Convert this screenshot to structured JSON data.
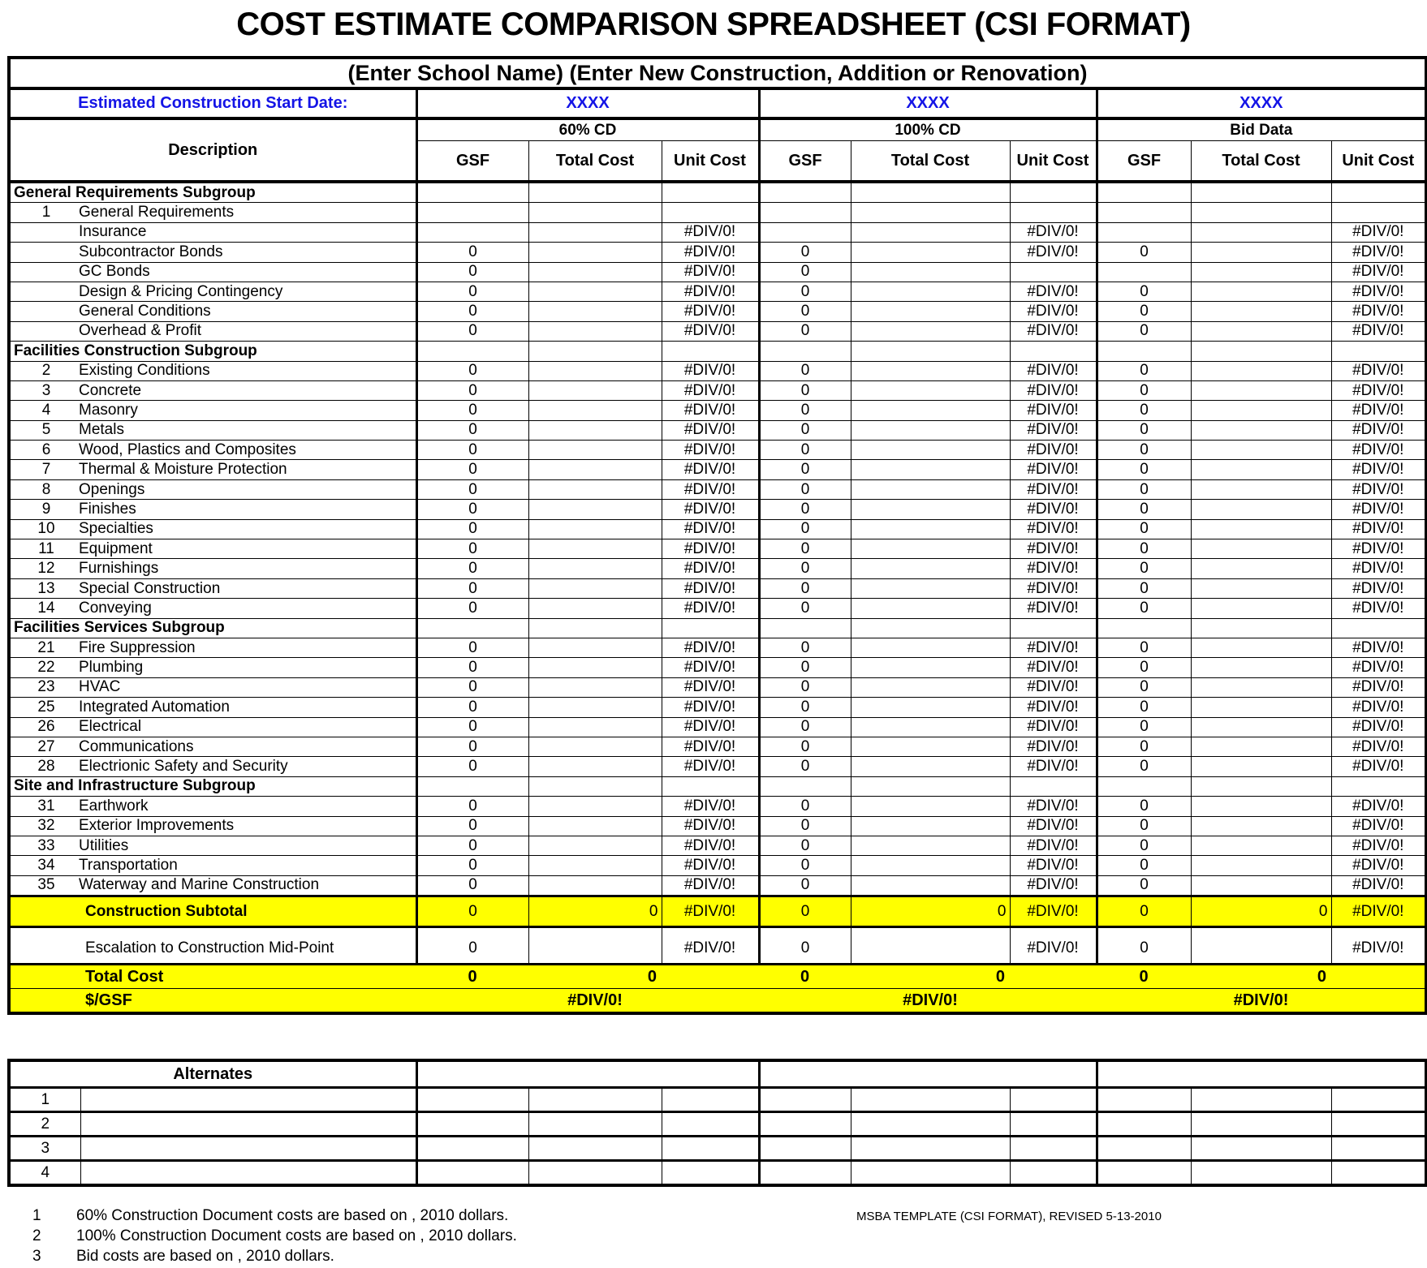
{
  "title": "COST ESTIMATE COMPARISON SPREADSHEET (CSI FORMAT)",
  "subtitle": "(Enter School Name) (Enter New Construction, Addition or Renovation)",
  "start_date_label": "Estimated Construction Start Date:",
  "start_dates": [
    "XXXX",
    "XXXX",
    "XXXX"
  ],
  "groups": [
    "60% CD",
    "100% CD",
    "Bid Data"
  ],
  "description_header": "Description",
  "column_headers": [
    "GSF",
    "Total Cost",
    "Unit Cost"
  ],
  "colors": {
    "highlight": "#ffff00",
    "blue_text": "#1414e6"
  },
  "rows": [
    {
      "type": "subgroup",
      "desc": "General Requirements Subgroup"
    },
    {
      "type": "item",
      "num": "1",
      "desc": "General Requirements",
      "cells": [
        "",
        "",
        "",
        "",
        "",
        "",
        "",
        "",
        ""
      ]
    },
    {
      "type": "item",
      "num": "",
      "desc": "Insurance",
      "cells": [
        "",
        "",
        "#DIV/0!",
        "",
        "",
        "#DIV/0!",
        "",
        "",
        "#DIV/0!"
      ]
    },
    {
      "type": "item",
      "num": "",
      "desc": "Subcontractor Bonds",
      "cells": [
        "0",
        "",
        "#DIV/0!",
        "0",
        "",
        "#DIV/0!",
        "0",
        "",
        "#DIV/0!"
      ]
    },
    {
      "type": "item",
      "num": "",
      "desc": "GC Bonds",
      "cells": [
        "0",
        "",
        "#DIV/0!",
        "0",
        "",
        "",
        "",
        "",
        "#DIV/0!"
      ]
    },
    {
      "type": "item",
      "num": "",
      "desc": "Design & Pricing Contingency",
      "cells": [
        "0",
        "",
        "#DIV/0!",
        "0",
        "",
        "#DIV/0!",
        "0",
        "",
        "#DIV/0!"
      ]
    },
    {
      "type": "item",
      "num": "",
      "desc": "General Conditions",
      "cells": [
        "0",
        "",
        "#DIV/0!",
        "0",
        "",
        "#DIV/0!",
        "0",
        "",
        "#DIV/0!"
      ]
    },
    {
      "type": "item",
      "num": "",
      "desc": "Overhead & Profit",
      "cells": [
        "0",
        "",
        "#DIV/0!",
        "0",
        "",
        "#DIV/0!",
        "0",
        "",
        "#DIV/0!"
      ]
    },
    {
      "type": "subgroup",
      "desc": "Facilities Construction Subgroup"
    },
    {
      "type": "item",
      "num": "2",
      "desc": "Existing Conditions",
      "cells": [
        "0",
        "",
        "#DIV/0!",
        "0",
        "",
        "#DIV/0!",
        "0",
        "",
        "#DIV/0!"
      ]
    },
    {
      "type": "item",
      "num": "3",
      "desc": "Concrete",
      "cells": [
        "0",
        "",
        "#DIV/0!",
        "0",
        "",
        "#DIV/0!",
        "0",
        "",
        "#DIV/0!"
      ]
    },
    {
      "type": "item",
      "num": "4",
      "desc": "Masonry",
      "cells": [
        "0",
        "",
        "#DIV/0!",
        "0",
        "",
        "#DIV/0!",
        "0",
        "",
        "#DIV/0!"
      ]
    },
    {
      "type": "item",
      "num": "5",
      "desc": "Metals",
      "cells": [
        "0",
        "",
        "#DIV/0!",
        "0",
        "",
        "#DIV/0!",
        "0",
        "",
        "#DIV/0!"
      ]
    },
    {
      "type": "item",
      "num": "6",
      "desc": "Wood, Plastics and Composites",
      "cells": [
        "0",
        "",
        "#DIV/0!",
        "0",
        "",
        "#DIV/0!",
        "0",
        "",
        "#DIV/0!"
      ]
    },
    {
      "type": "item",
      "num": "7",
      "desc": "Thermal & Moisture Protection",
      "cells": [
        "0",
        "",
        "#DIV/0!",
        "0",
        "",
        "#DIV/0!",
        "0",
        "",
        "#DIV/0!"
      ]
    },
    {
      "type": "item",
      "num": "8",
      "desc": "Openings",
      "cells": [
        "0",
        "",
        "#DIV/0!",
        "0",
        "",
        "#DIV/0!",
        "0",
        "",
        "#DIV/0!"
      ]
    },
    {
      "type": "item",
      "num": "9",
      "desc": "Finishes",
      "cells": [
        "0",
        "",
        "#DIV/0!",
        "0",
        "",
        "#DIV/0!",
        "0",
        "",
        "#DIV/0!"
      ]
    },
    {
      "type": "item",
      "num": "10",
      "desc": "Specialties",
      "cells": [
        "0",
        "",
        "#DIV/0!",
        "0",
        "",
        "#DIV/0!",
        "0",
        "",
        "#DIV/0!"
      ]
    },
    {
      "type": "item",
      "num": "11",
      "desc": "Equipment",
      "cells": [
        "0",
        "",
        "#DIV/0!",
        "0",
        "",
        "#DIV/0!",
        "0",
        "",
        "#DIV/0!"
      ]
    },
    {
      "type": "item",
      "num": "12",
      "desc": "Furnishings",
      "cells": [
        "0",
        "",
        "#DIV/0!",
        "0",
        "",
        "#DIV/0!",
        "0",
        "",
        "#DIV/0!"
      ]
    },
    {
      "type": "item",
      "num": "13",
      "desc": "Special Construction",
      "cells": [
        "0",
        "",
        "#DIV/0!",
        "0",
        "",
        "#DIV/0!",
        "0",
        "",
        "#DIV/0!"
      ]
    },
    {
      "type": "item",
      "num": "14",
      "desc": "Conveying",
      "cells": [
        "0",
        "",
        "#DIV/0!",
        "0",
        "",
        "#DIV/0!",
        "0",
        "",
        "#DIV/0!"
      ]
    },
    {
      "type": "subgroup",
      "desc": "Facilities Services Subgroup"
    },
    {
      "type": "item",
      "num": "21",
      "desc": "Fire Suppression",
      "cells": [
        "0",
        "",
        "#DIV/0!",
        "0",
        "",
        "#DIV/0!",
        "0",
        "",
        "#DIV/0!"
      ]
    },
    {
      "type": "item",
      "num": "22",
      "desc": "Plumbing",
      "cells": [
        "0",
        "",
        "#DIV/0!",
        "0",
        "",
        "#DIV/0!",
        "0",
        "",
        "#DIV/0!"
      ]
    },
    {
      "type": "item",
      "num": "23",
      "desc": "HVAC",
      "cells": [
        "0",
        "",
        "#DIV/0!",
        "0",
        "",
        "#DIV/0!",
        "0",
        "",
        "#DIV/0!"
      ]
    },
    {
      "type": "item",
      "num": "25",
      "desc": "Integrated Automation",
      "cells": [
        "0",
        "",
        "#DIV/0!",
        "0",
        "",
        "#DIV/0!",
        "0",
        "",
        "#DIV/0!"
      ]
    },
    {
      "type": "item",
      "num": "26",
      "desc": "Electrical",
      "cells": [
        "0",
        "",
        "#DIV/0!",
        "0",
        "",
        "#DIV/0!",
        "0",
        "",
        "#DIV/0!"
      ]
    },
    {
      "type": "item",
      "num": "27",
      "desc": "Communications",
      "cells": [
        "0",
        "",
        "#DIV/0!",
        "0",
        "",
        "#DIV/0!",
        "0",
        "",
        "#DIV/0!"
      ]
    },
    {
      "type": "item",
      "num": "28",
      "desc": "Electrionic Safety and Security",
      "cells": [
        "0",
        "",
        "#DIV/0!",
        "0",
        "",
        "#DIV/0!",
        "0",
        "",
        "#DIV/0!"
      ]
    },
    {
      "type": "subgroup",
      "desc": "Site and Infrastructure Subgroup"
    },
    {
      "type": "item",
      "num": "31",
      "desc": "Earthwork",
      "cells": [
        "0",
        "",
        "#DIV/0!",
        "0",
        "",
        "#DIV/0!",
        "0",
        "",
        "#DIV/0!"
      ]
    },
    {
      "type": "item",
      "num": "32",
      "desc": "Exterior Improvements",
      "cells": [
        "0",
        "",
        "#DIV/0!",
        "0",
        "",
        "#DIV/0!",
        "0",
        "",
        "#DIV/0!"
      ]
    },
    {
      "type": "item",
      "num": "33",
      "desc": "Utilities",
      "cells": [
        "0",
        "",
        "#DIV/0!",
        "0",
        "",
        "#DIV/0!",
        "0",
        "",
        "#DIV/0!"
      ]
    },
    {
      "type": "item",
      "num": "34",
      "desc": "Transportation",
      "cells": [
        "0",
        "",
        "#DIV/0!",
        "0",
        "",
        "#DIV/0!",
        "0",
        "",
        "#DIV/0!"
      ]
    },
    {
      "type": "item",
      "num": "35",
      "desc": "Waterway and Marine Construction",
      "cells": [
        "0",
        "",
        "#DIV/0!",
        "0",
        "",
        "#DIV/0!",
        "0",
        "",
        "#DIV/0!"
      ]
    }
  ],
  "subtotal": {
    "desc": "Construction Subtotal",
    "cells": [
      "0",
      "0",
      "#DIV/0!",
      "0",
      "0",
      "#DIV/0!",
      "0",
      "0",
      "#DIV/0!"
    ]
  },
  "escalation": {
    "desc": "Escalation to Construction Mid-Point",
    "cells": [
      "0",
      "",
      "#DIV/0!",
      "0",
      "",
      "#DIV/0!",
      "0",
      "",
      "#DIV/0!"
    ]
  },
  "total": {
    "desc": "Total Cost",
    "cells": [
      "0",
      "0",
      "",
      "0",
      "0",
      "",
      "0",
      "0",
      ""
    ]
  },
  "per_gsf": {
    "desc": "$/GSF",
    "values": [
      "#DIV/0!",
      "#DIV/0!",
      "#DIV/0!"
    ]
  },
  "alternates": {
    "header": "Alternates",
    "rows": [
      "1",
      "2",
      "3",
      "4"
    ]
  },
  "footnotes": [
    {
      "num": "1",
      "text": "60% Construction Document costs are based on   , 2010 dollars."
    },
    {
      "num": "2",
      "text": "100% Construction Document costs are based on   , 2010 dollars."
    },
    {
      "num": "3",
      "text": "Bid costs are based on   , 2010 dollars."
    }
  ],
  "template_note": "MSBA TEMPLATE (CSI FORMAT), REVISED  5-13-2010"
}
